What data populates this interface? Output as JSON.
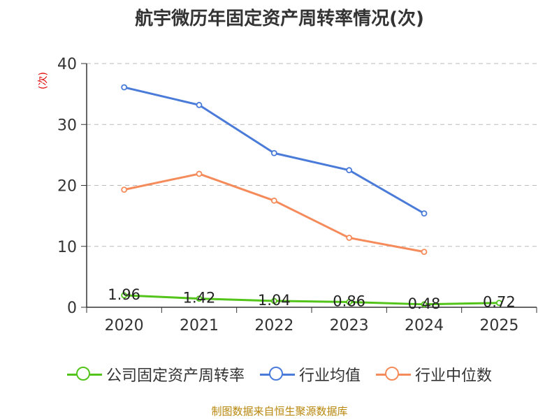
{
  "chart_data": {
    "type": "line",
    "title": "航宇微历年固定资产周转率情况(次)",
    "ylabel": "(次)",
    "categories": [
      "2020",
      "2021",
      "2022",
      "2023",
      "2024",
      "2025"
    ],
    "ylim": [
      0,
      40
    ],
    "yticks": [
      0,
      10,
      20,
      30,
      40
    ],
    "grid": true,
    "legend_position": "bottom",
    "series": [
      {
        "name": "公司固定资产周转率",
        "color": "#52c41a",
        "values": [
          1.96,
          1.42,
          1.04,
          0.86,
          0.48,
          0.72
        ],
        "data_labels": [
          "1.96",
          "1.42",
          "1.04",
          "0.86",
          "0.48",
          "0.72"
        ]
      },
      {
        "name": "行业均值",
        "color": "#4a7bd9",
        "values": [
          36.1,
          33.2,
          25.3,
          22.5,
          15.4,
          null
        ]
      },
      {
        "name": "行业中位数",
        "color": "#f58b5a",
        "values": [
          19.3,
          21.9,
          17.5,
          11.4,
          9.1,
          null
        ]
      }
    ]
  },
  "source": "制图数据来自恒生聚源数据库"
}
